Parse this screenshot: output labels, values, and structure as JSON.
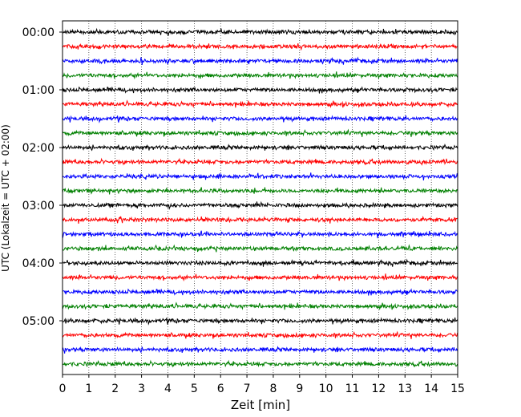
{
  "chart_data": {
    "type": "line",
    "title": "",
    "xlabel": "Zeit  [min]",
    "ylabel": "UTC (Lokalzeit = UTC + 02:00)",
    "xlim": [
      0,
      15
    ],
    "x_ticks": [
      0,
      1,
      2,
      3,
      4,
      5,
      6,
      7,
      8,
      9,
      10,
      11,
      12,
      13,
      14,
      15
    ],
    "y_ticks": [
      "00:00",
      "01:00",
      "02:00",
      "03:00",
      "04:00",
      "05:00"
    ],
    "grid": "vertical-dotted",
    "trace_colors": [
      "#000000",
      "#ff0000",
      "#0000ff",
      "#008000"
    ],
    "traces": [
      {
        "start": "00:00",
        "color": "#000000"
      },
      {
        "start": "00:15",
        "color": "#ff0000"
      },
      {
        "start": "00:30",
        "color": "#0000ff"
      },
      {
        "start": "00:45",
        "color": "#008000"
      },
      {
        "start": "01:00",
        "color": "#000000"
      },
      {
        "start": "01:15",
        "color": "#ff0000"
      },
      {
        "start": "01:30",
        "color": "#0000ff"
      },
      {
        "start": "01:45",
        "color": "#008000"
      },
      {
        "start": "02:00",
        "color": "#000000"
      },
      {
        "start": "02:15",
        "color": "#ff0000"
      },
      {
        "start": "02:30",
        "color": "#0000ff"
      },
      {
        "start": "02:45",
        "color": "#008000"
      },
      {
        "start": "03:00",
        "color": "#000000"
      },
      {
        "start": "03:15",
        "color": "#ff0000"
      },
      {
        "start": "03:30",
        "color": "#0000ff"
      },
      {
        "start": "03:45",
        "color": "#008000"
      },
      {
        "start": "04:00",
        "color": "#000000"
      },
      {
        "start": "04:15",
        "color": "#ff0000"
      },
      {
        "start": "04:30",
        "color": "#0000ff"
      },
      {
        "start": "04:45",
        "color": "#008000"
      },
      {
        "start": "05:00",
        "color": "#000000"
      },
      {
        "start": "05:15",
        "color": "#ff0000"
      },
      {
        "start": "05:30",
        "color": "#0000ff"
      },
      {
        "start": "05:45",
        "color": "#008000"
      }
    ]
  }
}
